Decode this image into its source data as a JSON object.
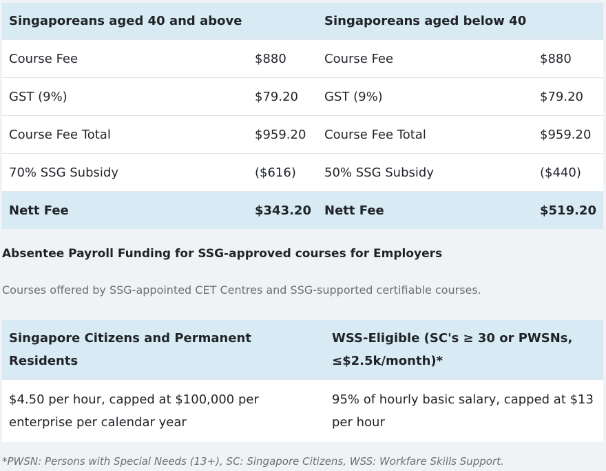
{
  "fee_table": {
    "header": {
      "left_group": "Singaporeans aged 40 and above",
      "right_group": "Singaporeans aged below 40"
    },
    "rows": [
      {
        "left_label": "Course Fee",
        "left_value": "$880",
        "right_label": "Course Fee",
        "right_value": "$880"
      },
      {
        "left_label": "GST (9%)",
        "left_value": "$79.20",
        "right_label": "GST (9%)",
        "right_value": "$79.20"
      },
      {
        "left_label": "Course Fee Total",
        "left_value": "$959.20",
        "right_label": "Course Fee Total",
        "right_value": "$959.20"
      },
      {
        "left_label": "70% SSG Subsidy",
        "left_value": "($616)",
        "right_label": "50% SSG Subsidy",
        "right_value": "($440)"
      },
      {
        "left_label": "Nett Fee",
        "left_value": "$343.20",
        "right_label": "Nett Fee",
        "right_value": "$519.20"
      }
    ]
  },
  "payroll": {
    "heading": "Absentee Payroll Funding for SSG-approved courses for Employers",
    "description": "Courses offered by SSG-appointed CET Centres and SSG-supported certifiable courses.",
    "headers": [
      "Singapore Citizens and Permanent Residents",
      "WSS-Eligible (SC's ≥ 30 or PWSNs, ≤$2.5k/month)*"
    ],
    "row": [
      "$4.50 per hour, capped at $100,000 per enterprise per calendar year",
      "95% of hourly basic salary, capped at $13 per hour"
    ]
  },
  "footnote": "*PWSN: Persons with Special Needs (13+), SC: Singapore Citizens, WSS: Workfare Skills Support."
}
